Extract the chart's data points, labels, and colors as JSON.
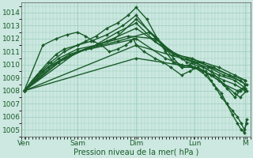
{
  "bg_color": "#cce8e0",
  "grid_color": "#99ccbb",
  "line_color": "#1a5c2a",
  "marker_color": "#1a5c2a",
  "xlabel": "Pression niveau de la mer( hPa )",
  "xlabel_color": "#1a5c2a",
  "tick_label_color": "#1a5c2a",
  "ylim": [
    1004.5,
    1014.8
  ],
  "yticks": [
    1005,
    1006,
    1007,
    1008,
    1009,
    1010,
    1011,
    1012,
    1013,
    1014
  ],
  "xlim": [
    0.0,
    4.3
  ],
  "xtick_positions": [
    0.05,
    1.05,
    2.15,
    3.25,
    4.2
  ],
  "xtick_labels": [
    "Ven",
    "Sam",
    "Dim",
    "Lun",
    "M"
  ],
  "lines": [
    {
      "x": [
        0.05,
        0.2,
        0.35,
        0.5,
        0.65,
        0.8,
        1.05,
        1.2,
        1.4,
        1.6,
        1.8,
        2.0,
        2.15,
        2.35,
        2.55,
        2.7,
        2.85,
        3.0,
        3.15,
        3.25,
        3.4,
        3.55,
        3.7,
        3.85,
        4.0,
        4.1,
        4.2
      ],
      "y": [
        1008.0,
        1008.8,
        1009.5,
        1010.2,
        1010.8,
        1011.2,
        1011.5,
        1011.8,
        1012.2,
        1012.8,
        1013.2,
        1013.8,
        1014.4,
        1013.5,
        1012.0,
        1011.0,
        1010.2,
        1009.8,
        1010.0,
        1009.8,
        1009.5,
        1009.2,
        1008.8,
        1008.2,
        1007.5,
        1008.0,
        1008.2
      ],
      "lw": 1.0
    },
    {
      "x": [
        0.05,
        0.3,
        0.55,
        0.8,
        1.05,
        1.3,
        1.6,
        1.9,
        2.15,
        2.4,
        2.65,
        2.85,
        3.0,
        3.2,
        3.4,
        3.6,
        3.8,
        4.0,
        4.2
      ],
      "y": [
        1008.0,
        1009.2,
        1010.2,
        1011.0,
        1011.5,
        1011.8,
        1012.3,
        1013.0,
        1013.8,
        1012.5,
        1011.5,
        1010.5,
        1009.8,
        1009.8,
        1009.5,
        1009.2,
        1008.8,
        1008.5,
        1008.0
      ],
      "lw": 1.0
    },
    {
      "x": [
        0.05,
        0.4,
        0.7,
        1.05,
        1.4,
        1.75,
        2.15,
        2.5,
        2.8,
        3.1,
        3.4,
        3.7,
        4.0,
        4.2
      ],
      "y": [
        1008.0,
        1009.5,
        1010.5,
        1011.2,
        1011.5,
        1012.0,
        1013.5,
        1012.2,
        1011.0,
        1010.2,
        1009.8,
        1009.2,
        1008.8,
        1008.2
      ],
      "lw": 1.0
    },
    {
      "x": [
        0.05,
        0.5,
        0.9,
        1.3,
        1.8,
        2.15,
        2.5,
        2.85,
        3.2,
        3.55,
        3.9,
        4.2
      ],
      "y": [
        1008.0,
        1009.8,
        1010.8,
        1011.3,
        1012.5,
        1013.2,
        1011.8,
        1010.8,
        1010.5,
        1009.8,
        1009.2,
        1008.5
      ],
      "lw": 1.0
    },
    {
      "x": [
        0.05,
        0.6,
        1.05,
        1.6,
        2.15,
        2.7,
        3.1,
        3.4,
        3.7,
        4.0,
        4.2
      ],
      "y": [
        1008.0,
        1010.0,
        1011.0,
        1011.8,
        1012.8,
        1011.2,
        1010.5,
        1010.2,
        1009.8,
        1009.2,
        1008.8
      ],
      "lw": 1.0
    },
    {
      "x": [
        0.05,
        0.7,
        1.2,
        1.8,
        2.4,
        2.85,
        3.2,
        3.5,
        3.8,
        4.1,
        4.2
      ],
      "y": [
        1008.0,
        1010.2,
        1011.2,
        1011.8,
        1012.5,
        1010.8,
        1010.2,
        1009.8,
        1009.2,
        1008.8,
        1008.5
      ],
      "lw": 1.0
    },
    {
      "x": [
        0.05,
        0.8,
        1.4,
        2.0,
        2.5,
        3.0,
        3.3,
        3.6,
        3.9,
        4.2
      ],
      "y": [
        1008.0,
        1010.5,
        1011.5,
        1012.2,
        1012.0,
        1010.5,
        1010.2,
        1009.8,
        1009.2,
        1008.8
      ],
      "lw": 1.0
    },
    {
      "x": [
        0.05,
        0.4,
        0.65,
        0.85,
        1.05,
        1.2,
        1.35,
        1.5,
        1.65,
        1.8,
        1.95,
        2.05,
        2.1,
        2.15,
        2.3,
        2.5,
        2.65,
        2.8,
        3.0,
        3.15,
        3.3,
        3.45,
        3.55,
        3.65,
        3.75,
        3.85,
        3.95,
        4.05,
        4.12,
        4.18,
        4.22
      ],
      "y": [
        1008.0,
        1011.5,
        1012.0,
        1012.3,
        1012.5,
        1012.2,
        1011.8,
        1011.5,
        1011.0,
        1011.2,
        1011.5,
        1011.8,
        1012.0,
        1011.5,
        1011.0,
        1010.5,
        1010.2,
        1009.8,
        1009.2,
        1009.5,
        1009.8,
        1009.5,
        1008.8,
        1008.2,
        1007.5,
        1007.0,
        1006.5,
        1006.0,
        1005.5,
        1005.0,
        1005.5
      ],
      "lw": 1.0
    },
    {
      "x": [
        0.05,
        1.05,
        2.15,
        2.7,
        3.0,
        3.25,
        3.45,
        3.6,
        3.75,
        3.85,
        3.95,
        4.05,
        4.12,
        4.18,
        4.22
      ],
      "y": [
        1008.0,
        1011.0,
        1012.0,
        1010.5,
        1010.0,
        1009.8,
        1009.2,
        1008.5,
        1007.8,
        1007.0,
        1006.2,
        1005.5,
        1005.0,
        1004.8,
        1005.8
      ],
      "lw": 1.0
    },
    {
      "x": [
        0.05,
        2.15,
        3.25,
        3.55,
        3.8,
        4.0,
        4.1,
        4.22
      ],
      "y": [
        1008.0,
        1011.5,
        1010.2,
        1009.5,
        1008.5,
        1007.8,
        1007.5,
        1008.0
      ],
      "lw": 1.0
    },
    {
      "x": [
        0.05,
        2.15,
        3.25,
        3.55,
        3.8,
        4.05,
        4.15,
        4.22
      ],
      "y": [
        1008.0,
        1010.5,
        1009.8,
        1009.2,
        1008.5,
        1008.0,
        1008.2,
        1008.5
      ],
      "lw": 1.0
    }
  ]
}
